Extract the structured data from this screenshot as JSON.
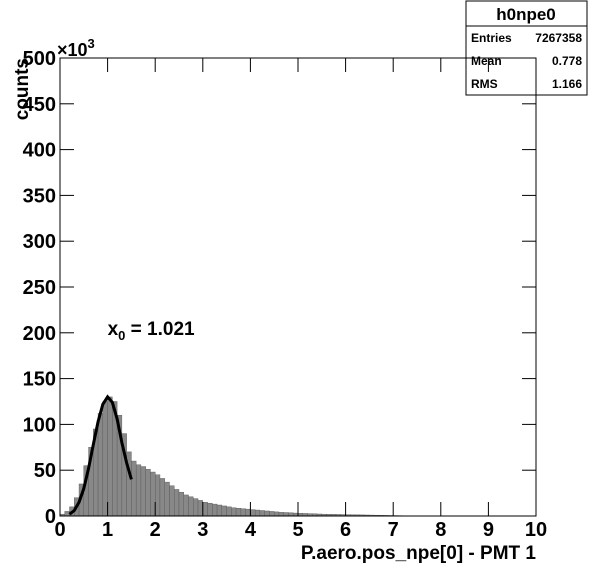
{
  "chart_data": {
    "type": "histogram",
    "x_label": "P.aero.pos_npe[0] - PMT 1",
    "y_label": "counts",
    "y_multiplier": "×10",
    "y_multiplier_exp": "3",
    "color": "#888888",
    "bins": [
      0,
      0.1,
      0.2,
      0.3,
      0.4,
      0.5,
      0.6,
      0.7,
      0.8,
      0.9,
      1,
      1.1,
      1.2,
      1.3,
      1.4,
      1.5,
      1.6,
      1.7,
      1.8,
      1.9,
      2,
      2.1,
      2.2,
      2.3,
      2.4,
      2.5,
      2.6,
      2.7,
      2.8,
      2.9,
      3,
      3.1,
      3.2,
      3.3,
      3.4,
      3.5,
      3.6,
      3.7,
      3.8,
      3.9,
      4,
      4.1,
      4.2,
      4.3,
      4.4,
      4.5,
      4.6,
      4.7,
      4.8,
      4.9,
      5,
      5.1,
      5.2,
      5.3,
      5.4,
      5.5,
      5.6,
      5.7,
      5.8,
      5.9,
      6,
      6.1,
      6.2,
      6.3,
      6.4,
      6.5,
      6.6,
      6.7,
      6.8,
      6.9,
      7,
      7.1,
      7.2,
      7.3,
      7.4,
      7.5
    ],
    "values": [
      2,
      5,
      10,
      20,
      35,
      55,
      75,
      95,
      112,
      125,
      130,
      125,
      110,
      90,
      70,
      60,
      56,
      54,
      51,
      48,
      45,
      41,
      37,
      33,
      29,
      26,
      23,
      21,
      19,
      17,
      15,
      14,
      13,
      12,
      11,
      10,
      9,
      8.5,
      8,
      7.5,
      7,
      6.5,
      6,
      5.5,
      5,
      4.5,
      4,
      3.8,
      3.5,
      3.2,
      3,
      2.8,
      2.6,
      2.4,
      2.2,
      2,
      1.9,
      1.8,
      1.7,
      1.6,
      1.5,
      1.4,
      1.3,
      1.2,
      1.1,
      1,
      0.9,
      0.8,
      0.7,
      0.6,
      0.5,
      0.4,
      0.3,
      0.2,
      0.1
    ],
    "fit": {
      "color": "#000000",
      "x": [
        0.2,
        0.3,
        0.4,
        0.5,
        0.6,
        0.7,
        0.8,
        0.9,
        1.0,
        1.1,
        1.2,
        1.3,
        1.4,
        1.5
      ],
      "values": [
        2,
        6,
        15,
        30,
        52,
        78,
        103,
        122,
        130,
        124,
        106,
        80,
        58,
        40
      ]
    },
    "annotation": {
      "main": "x",
      "sub": "0",
      "rest": " = 1.021",
      "x": 1.0,
      "y": 205
    },
    "xlim": [
      0,
      10
    ],
    "xticks": [
      0,
      1,
      2,
      3,
      4,
      5,
      6,
      7,
      8,
      9,
      10
    ],
    "ylim": [
      0,
      500
    ],
    "yticks": [
      0,
      50,
      100,
      150,
      200,
      250,
      300,
      350,
      400,
      450,
      500
    ],
    "stats": {
      "title": "h0npe0",
      "rows": [
        [
          "Entries",
          7267358
        ],
        [
          "Mean",
          0.778
        ],
        [
          "RMS",
          1.166
        ]
      ]
    }
  }
}
